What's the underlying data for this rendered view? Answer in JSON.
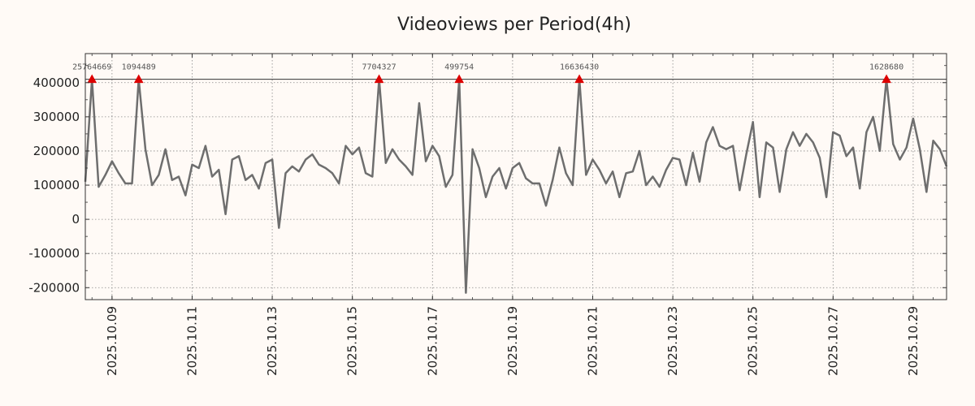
{
  "chart_data": {
    "type": "line",
    "title": "Videoviews per Period(4h)",
    "xlabel": "",
    "ylabel": "",
    "ylim": [
      -235000,
      485000
    ],
    "yticks": [
      400000,
      300000,
      200000,
      100000,
      0,
      -100000,
      -200000
    ],
    "ytick_labels": [
      "400000",
      "300000",
      "200000",
      "100000",
      "0",
      "-100000",
      "-200000"
    ],
    "x_start": "2025.10.08 08:00",
    "period_hours": 4,
    "xticks": [
      {
        "label": "2025.10.09",
        "day": 9
      },
      {
        "label": "2025.10.11",
        "day": 11
      },
      {
        "label": "2025.10.13",
        "day": 13
      },
      {
        "label": "2025.10.15",
        "day": 15
      },
      {
        "label": "2025.10.17",
        "day": 17
      },
      {
        "label": "2025.10.19",
        "day": 19
      },
      {
        "label": "2025.10.21",
        "day": 21
      },
      {
        "label": "2025.10.23",
        "day": 23
      },
      {
        "label": "2025.10.25",
        "day": 25
      },
      {
        "label": "2025.10.27",
        "day": 27
      },
      {
        "label": "2025.10.29",
        "day": 29
      }
    ],
    "cap_value": 410000,
    "series": [
      {
        "name": "Videoviews",
        "color": "#6e6e6e",
        "values": [
          110000,
          410000,
          95000,
          130000,
          170000,
          135000,
          105000,
          105000,
          410000,
          205000,
          100000,
          130000,
          205000,
          115000,
          125000,
          70000,
          160000,
          150000,
          215000,
          125000,
          145000,
          15000,
          175000,
          185000,
          115000,
          130000,
          90000,
          165000,
          175000,
          -25000,
          135000,
          155000,
          140000,
          175000,
          190000,
          160000,
          150000,
          135000,
          105000,
          215000,
          190000,
          210000,
          135000,
          125000,
          410000,
          165000,
          205000,
          175000,
          155000,
          130000,
          340000,
          170000,
          215000,
          185000,
          95000,
          130000,
          410000,
          -215000,
          205000,
          150000,
          65000,
          125000,
          150000,
          90000,
          150000,
          165000,
          120000,
          105000,
          105000,
          40000,
          115000,
          210000,
          135000,
          100000,
          410000,
          130000,
          175000,
          145000,
          105000,
          140000,
          65000,
          135000,
          140000,
          200000,
          100000,
          125000,
          95000,
          145000,
          180000,
          175000,
          100000,
          195000,
          110000,
          225000,
          270000,
          215000,
          205000,
          215000,
          85000,
          190000,
          285000,
          65000,
          225000,
          210000,
          80000,
          205000,
          255000,
          215000,
          250000,
          225000,
          180000,
          65000,
          255000,
          245000,
          185000,
          210000,
          90000,
          255000,
          300000,
          200000,
          410000,
          220000,
          175000,
          210000,
          295000,
          205000,
          80000,
          230000,
          205000,
          155000
        ]
      }
    ],
    "peaks": [
      {
        "index": 1,
        "label": "25764669"
      },
      {
        "index": 8,
        "label": "1094489"
      },
      {
        "index": 44,
        "label": "7704327"
      },
      {
        "index": 56,
        "label": "499754"
      },
      {
        "index": 74,
        "label": "16636430"
      },
      {
        "index": 120,
        "label": "1628680"
      }
    ],
    "marker_color": "#dd0000",
    "grid": true
  }
}
